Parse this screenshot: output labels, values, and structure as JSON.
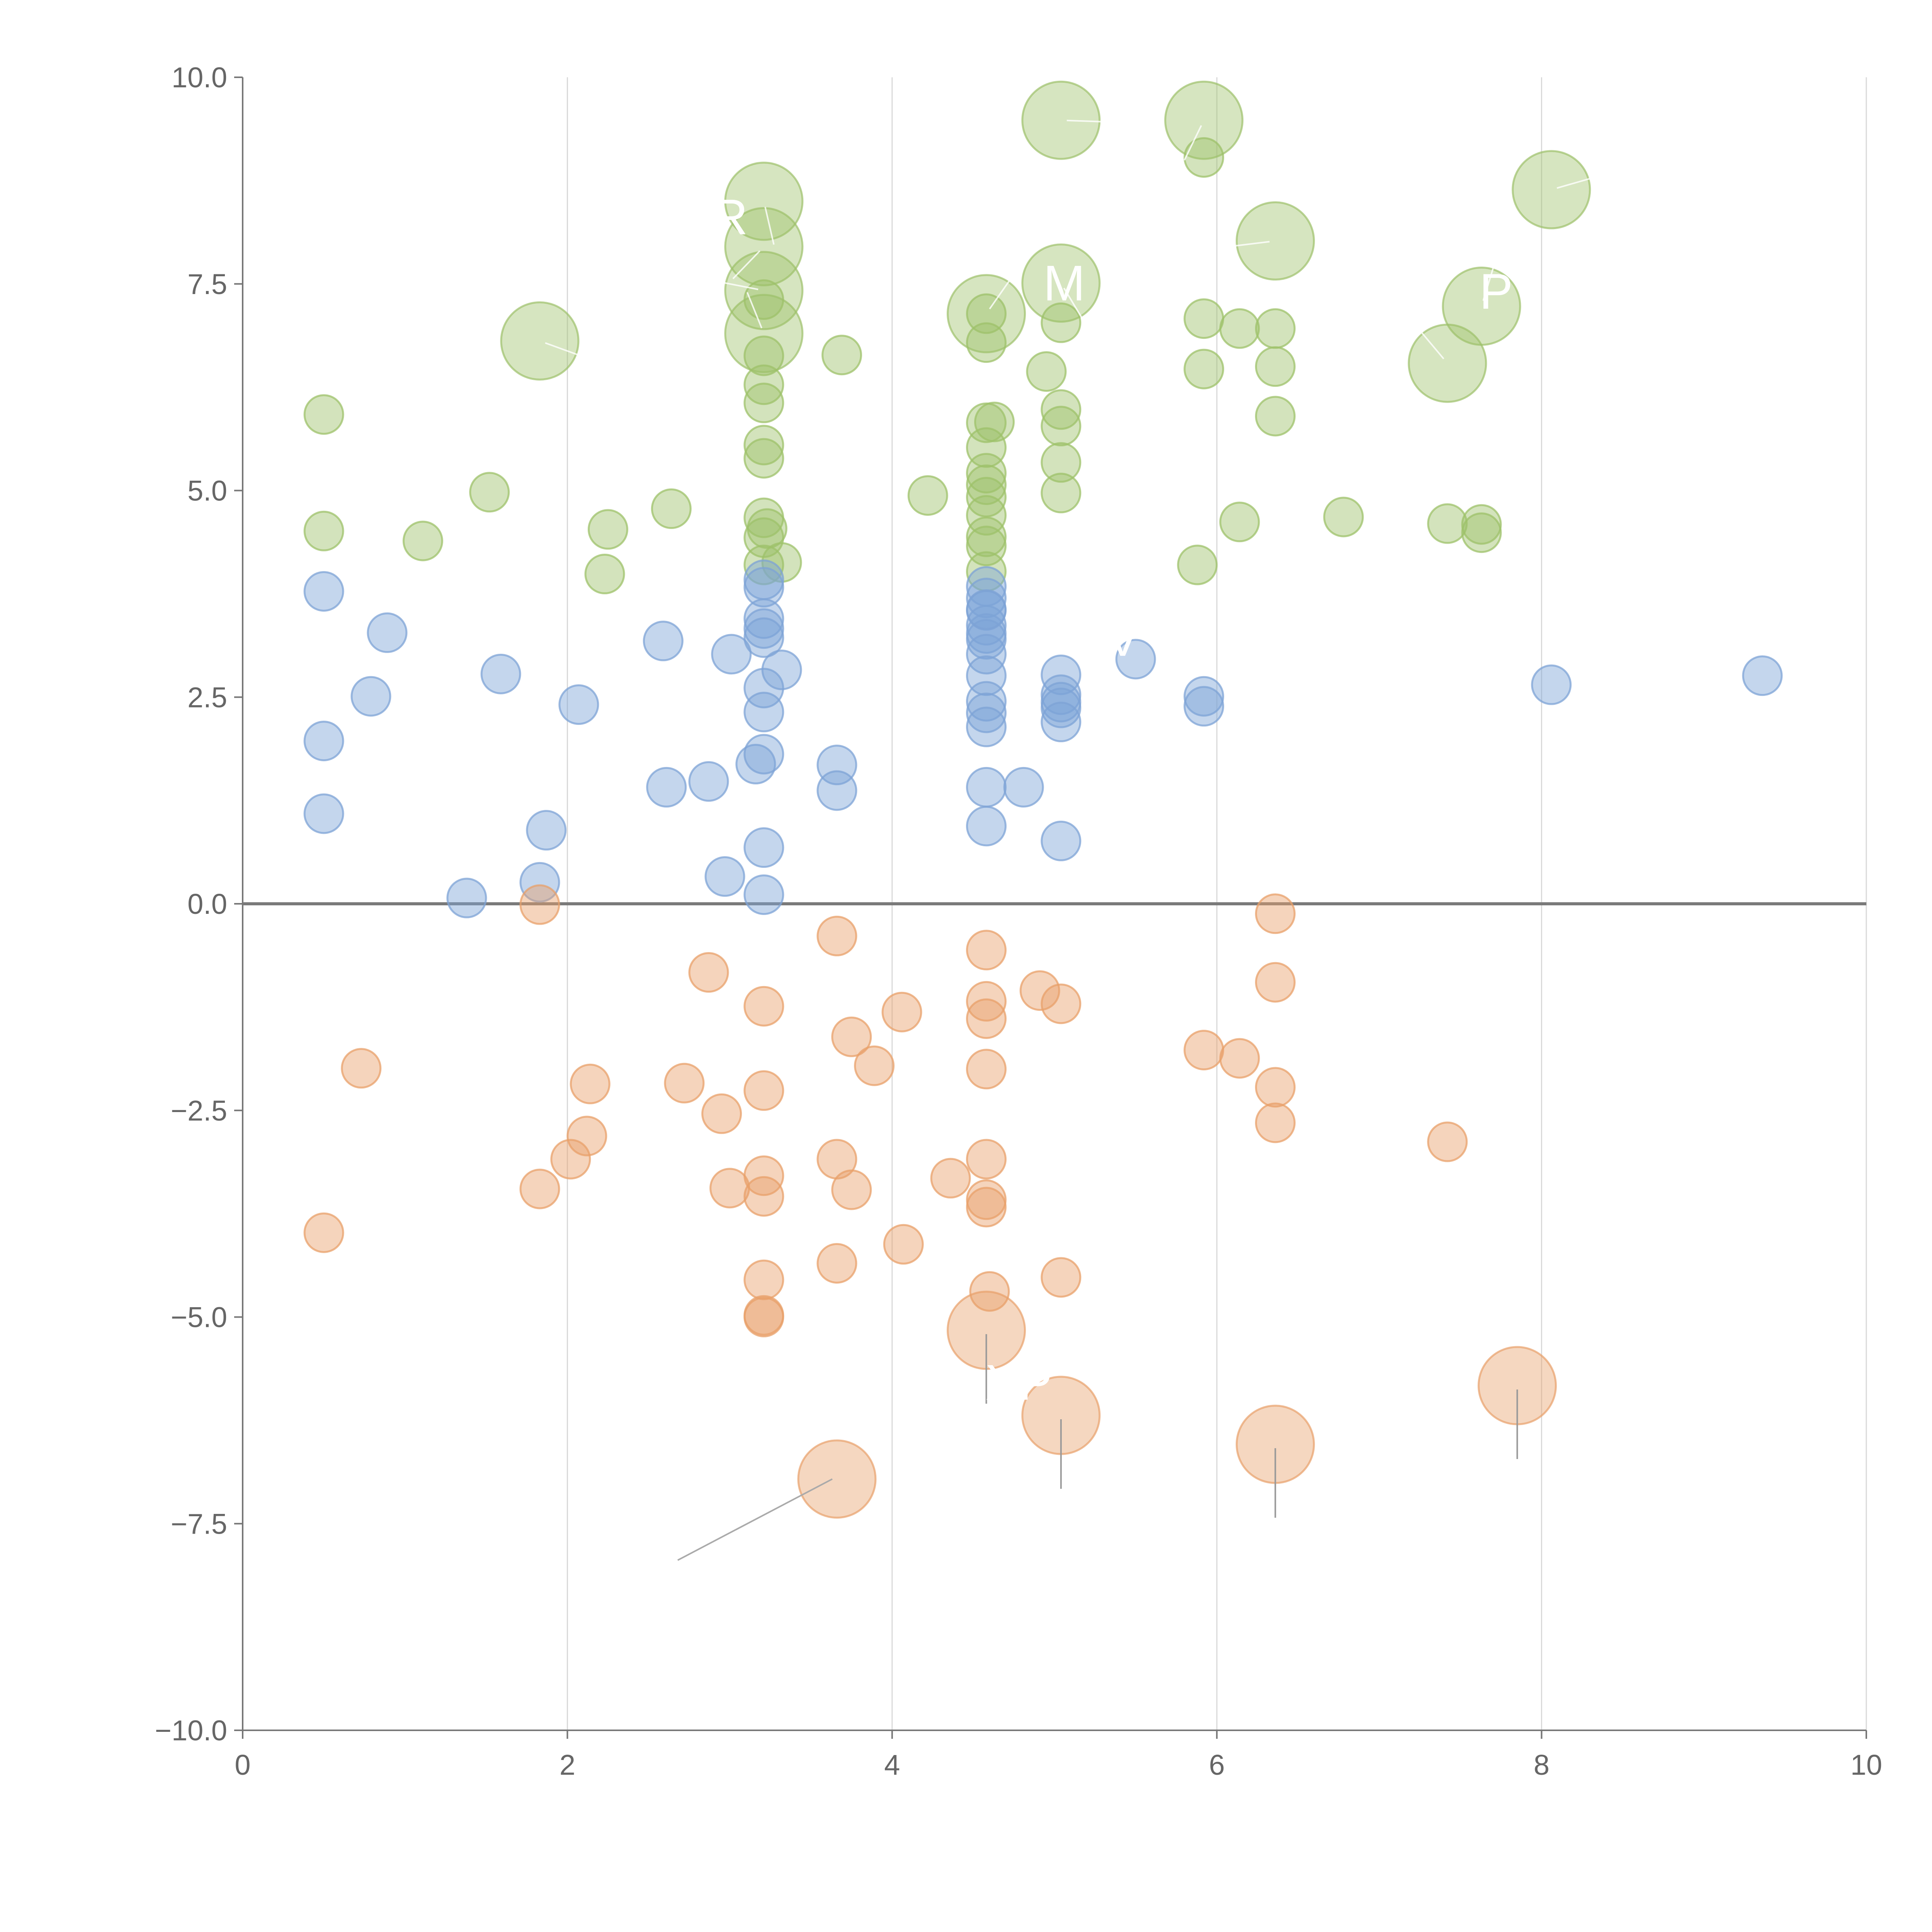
{
  "chart_data": {
    "type": "scatter",
    "title": "",
    "xlabel": "",
    "ylabel": "",
    "xlim": [
      0,
      10
    ],
    "ylim": [
      -10,
      10
    ],
    "grid": "vertical",
    "x_ticks": [
      0,
      2,
      4,
      6,
      8,
      10
    ],
    "x_tick_labels": [
      "0",
      "2",
      "4",
      "6",
      "8",
      "10"
    ],
    "y_ticks": [
      10,
      7.5,
      5,
      2.5,
      0,
      -2.5,
      -5,
      -7.5,
      -10
    ],
    "y_tick_labels": [
      "10.0",
      "7.5",
      "5.0",
      "2.5",
      "0.0",
      "−2.5",
      "−5.0",
      "−7.5",
      "−10.0"
    ],
    "series": [
      {
        "name": "green",
        "color": "#9dc16a",
        "points": [
          [
            0.5,
            5.92
          ],
          [
            0.5,
            4.51
          ],
          [
            1.11,
            4.39
          ],
          [
            1.52,
            4.98
          ],
          [
            2.23,
            3.99
          ],
          [
            2.25,
            4.53
          ],
          [
            2.64,
            4.78
          ],
          [
            3.21,
            6.63
          ],
          [
            3.21,
            6.28
          ],
          [
            3.21,
            6.06
          ],
          [
            3.21,
            5.55
          ],
          [
            3.21,
            5.39
          ],
          [
            3.21,
            4.67
          ],
          [
            3.21,
            4.43
          ],
          [
            3.21,
            4.1
          ],
          [
            3.21,
            7.31
          ],
          [
            3.23,
            4.54
          ],
          [
            3.32,
            4.13
          ],
          [
            3.69,
            6.64
          ],
          [
            4.22,
            4.94
          ],
          [
            4.58,
            7.14
          ],
          [
            4.58,
            6.79
          ],
          [
            4.58,
            5.82
          ],
          [
            4.58,
            5.52
          ],
          [
            4.58,
            5.21
          ],
          [
            4.58,
            5.07
          ],
          [
            4.58,
            4.92
          ],
          [
            4.58,
            4.7
          ],
          [
            4.58,
            4.44
          ],
          [
            4.58,
            4.33
          ],
          [
            4.58,
            4.02
          ],
          [
            4.63,
            5.83
          ],
          [
            4.95,
            6.44
          ],
          [
            5.04,
            5.98
          ],
          [
            5.04,
            5.78
          ],
          [
            5.04,
            5.34
          ],
          [
            5.04,
            4.97
          ],
          [
            5.04,
            7.03
          ],
          [
            5.92,
            7.08
          ],
          [
            5.92,
            6.47
          ],
          [
            5.92,
            9.03
          ],
          [
            5.88,
            4.1
          ],
          [
            6.14,
            6.96
          ],
          [
            6.14,
            4.62
          ],
          [
            6.36,
            6.96
          ],
          [
            6.36,
            6.5
          ],
          [
            6.36,
            5.9
          ],
          [
            6.78,
            4.68
          ],
          [
            7.42,
            4.6
          ],
          [
            7.63,
            4.59
          ],
          [
            7.63,
            4.49
          ]
        ],
        "large": [
          [
            1.83,
            6.81
          ],
          [
            3.21,
            8.5
          ],
          [
            3.21,
            7.95
          ],
          [
            3.21,
            7.42
          ],
          [
            3.21,
            6.9
          ],
          [
            4.58,
            7.14
          ],
          [
            5.04,
            9.48
          ],
          [
            5.04,
            7.51
          ],
          [
            5.92,
            9.48
          ],
          [
            6.36,
            8.02
          ],
          [
            7.42,
            6.54
          ],
          [
            7.63,
            7.23
          ],
          [
            8.06,
            8.64
          ]
        ]
      },
      {
        "name": "blue",
        "color": "#7da3d6",
        "points": [
          [
            0.5,
            3.78
          ],
          [
            0.5,
            1.97
          ],
          [
            0.5,
            1.09
          ],
          [
            0.79,
            2.51
          ],
          [
            0.89,
            3.28
          ],
          [
            1.38,
            0.07
          ],
          [
            1.59,
            2.78
          ],
          [
            1.83,
            0.26
          ],
          [
            1.87,
            0.89
          ],
          [
            2.07,
            2.41
          ],
          [
            2.59,
            3.18
          ],
          [
            2.61,
            1.41
          ],
          [
            2.87,
            1.48
          ],
          [
            2.97,
            0.33
          ],
          [
            3.01,
            3.02
          ],
          [
            3.16,
            1.69
          ],
          [
            3.21,
            3.92
          ],
          [
            3.21,
            3.83
          ],
          [
            3.21,
            3.45
          ],
          [
            3.21,
            3.33
          ],
          [
            3.21,
            3.22
          ],
          [
            3.21,
            2.61
          ],
          [
            3.21,
            2.32
          ],
          [
            3.21,
            1.81
          ],
          [
            3.21,
            0.68
          ],
          [
            3.21,
            0.11
          ],
          [
            3.32,
            2.83
          ],
          [
            3.66,
            1.68
          ],
          [
            3.66,
            1.37
          ],
          [
            4.58,
            3.84
          ],
          [
            4.58,
            3.7
          ],
          [
            4.58,
            3.55
          ],
          [
            4.58,
            3.37
          ],
          [
            4.58,
            3.27
          ],
          [
            4.58,
            3.2
          ],
          [
            4.58,
            3.02
          ],
          [
            4.58,
            2.76
          ],
          [
            4.58,
            2.45
          ],
          [
            4.58,
            2.31
          ],
          [
            4.58,
            2.14
          ],
          [
            4.58,
            1.41
          ],
          [
            4.58,
            0.94
          ],
          [
            4.58,
            3.56
          ],
          [
            4.81,
            1.41
          ],
          [
            5.04,
            2.77
          ],
          [
            5.04,
            2.53
          ],
          [
            5.04,
            2.44
          ],
          [
            5.04,
            2.37
          ],
          [
            5.04,
            2.2
          ],
          [
            5.04,
            0.76
          ],
          [
            5.5,
            2.96
          ],
          [
            5.92,
            2.51
          ],
          [
            5.92,
            2.39
          ],
          [
            8.06,
            2.65
          ],
          [
            9.36,
            2.76
          ]
        ],
        "large": []
      },
      {
        "name": "orange",
        "color": "#e8a06a",
        "points": [
          [
            0.5,
            -3.98
          ],
          [
            0.73,
            -1.99
          ],
          [
            1.83,
            -0.01
          ],
          [
            1.83,
            -3.45
          ],
          [
            2.02,
            -3.09
          ],
          [
            2.12,
            -2.81
          ],
          [
            2.14,
            -2.18
          ],
          [
            2.72,
            -2.17
          ],
          [
            2.87,
            -0.83
          ],
          [
            2.95,
            -2.54
          ],
          [
            3.0,
            -3.44
          ],
          [
            3.21,
            -1.24
          ],
          [
            3.21,
            -2.26
          ],
          [
            3.21,
            -3.29
          ],
          [
            3.21,
            -3.54
          ],
          [
            3.21,
            -4.55
          ],
          [
            3.21,
            -4.98
          ],
          [
            3.21,
            -5.0
          ],
          [
            3.66,
            -0.39
          ],
          [
            3.66,
            -3.09
          ],
          [
            3.66,
            -4.35
          ],
          [
            3.75,
            -1.61
          ],
          [
            3.75,
            -3.46
          ],
          [
            3.89,
            -1.96
          ],
          [
            4.06,
            -1.31
          ],
          [
            4.07,
            -4.12
          ],
          [
            4.36,
            -3.32
          ],
          [
            4.58,
            -0.56
          ],
          [
            4.58,
            -1.18
          ],
          [
            4.58,
            -1.39
          ],
          [
            4.58,
            -2.0
          ],
          [
            4.58,
            -3.09
          ],
          [
            4.58,
            -3.58
          ],
          [
            4.58,
            -3.67
          ],
          [
            4.6,
            -4.69
          ],
          [
            4.91,
            -1.05
          ],
          [
            5.04,
            -1.21
          ],
          [
            5.04,
            -4.52
          ],
          [
            5.92,
            -1.77
          ],
          [
            6.14,
            -1.87
          ],
          [
            6.36,
            -0.12
          ],
          [
            6.36,
            -0.95
          ],
          [
            6.36,
            -2.22
          ],
          [
            6.36,
            -2.65
          ],
          [
            7.42,
            -2.88
          ]
        ],
        "large": [
          [
            3.66,
            -6.96
          ],
          [
            4.58,
            -5.16
          ],
          [
            5.04,
            -6.19
          ],
          [
            6.36,
            -6.54
          ],
          [
            7.85,
            -5.83
          ]
        ]
      }
    ],
    "annotations": [
      {
        "text": "R",
        "x": 3.0,
        "y": 8.1
      },
      {
        "text": "M",
        "x": 5.06,
        "y": 7.3
      },
      {
        "text": "P",
        "x": 7.72,
        "y": 7.2
      },
      {
        "text": "XP",
        "x": 4.78,
        "y": -6.0
      },
      {
        "text": "V",
        "x": 5.42,
        "y": 3.0
      }
    ]
  }
}
